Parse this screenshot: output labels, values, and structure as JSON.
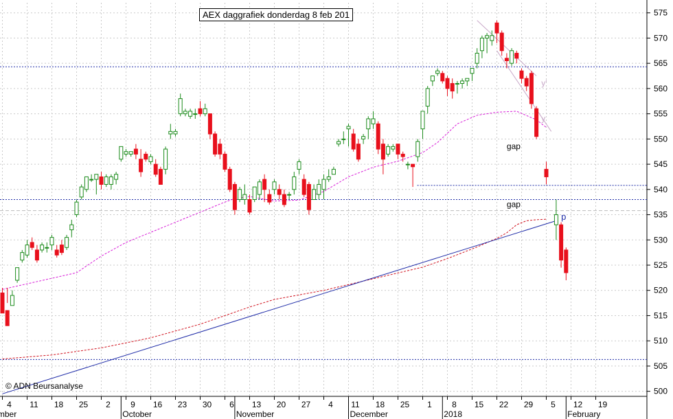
{
  "title": "AEX daggrafiek donderdag 8 feb 201",
  "copyright": "© ADN Beursanalyse",
  "colors": {
    "up": "#1a8a1a",
    "down": "#e8101c",
    "ma_short": "#d81bd8",
    "ma_long": "#d0101c",
    "trendline": "#1f2ca8",
    "h_level": "#1f2ca8",
    "grid": "#c9c9c9"
  },
  "chart_data": {
    "type": "candlestick",
    "title": "AEX daggrafiek donderdag 8 feb 201",
    "ylim": [
      499,
      577
    ],
    "y_ticks": [
      500,
      505,
      510,
      515,
      520,
      525,
      530,
      535,
      540,
      545,
      550,
      555,
      560,
      565,
      570,
      575
    ],
    "x_tick_labels": [
      "4",
      "11",
      "18",
      "25",
      "2",
      "9",
      "16",
      "23",
      "30",
      "6",
      "13",
      "20",
      "27",
      "4",
      "11",
      "18",
      "25",
      "1",
      "8",
      "15",
      "22",
      "29",
      "5",
      "12",
      "19"
    ],
    "month_labels": [
      "September",
      "October",
      "November",
      "December",
      "2018",
      "February"
    ],
    "grid": true,
    "candles": [
      [
        519.5,
        515.5,
        520.5,
        518
      ],
      [
        516,
        513,
        520.5,
        517.5
      ],
      [
        517,
        519,
        520,
        518.5
      ],
      [
        522,
        524.5,
        524.5,
        521.5
      ],
      [
        526,
        527.5,
        528,
        525.5
      ],
      [
        527,
        529,
        530,
        526.5
      ],
      [
        529.5,
        528.5,
        530.5,
        528
      ],
      [
        528,
        526,
        529,
        525.5
      ],
      [
        528,
        529,
        529.5,
        527.5
      ],
      [
        528.5,
        528.5,
        529.5,
        527.5
      ],
      [
        529,
        530.5,
        531,
        528
      ],
      [
        528,
        527,
        529,
        526.5
      ],
      [
        529,
        527.5,
        530,
        527
      ],
      [
        528.5,
        530.5,
        531,
        528
      ],
      [
        532,
        533,
        534,
        530.5
      ],
      [
        535,
        537.5,
        538,
        534.5
      ],
      [
        538.5,
        540.5,
        541,
        538
      ],
      [
        540,
        542.5,
        542.5,
        539.5
      ],
      [
        542,
        542,
        543,
        541.5
      ],
      [
        542,
        543,
        543,
        539
      ],
      [
        542.5,
        541,
        543.5,
        540
      ],
      [
        541,
        542.5,
        543,
        540.5
      ],
      [
        541,
        542.5,
        543,
        540
      ],
      [
        542,
        543,
        543.5,
        541
      ],
      [
        546,
        548.5,
        548.5,
        545.5
      ],
      [
        547,
        547.5,
        548,
        546.5
      ],
      [
        547,
        547.5,
        547.5,
        546.5
      ],
      [
        548,
        547,
        549,
        546
      ],
      [
        546,
        543.5,
        548,
        542.5
      ],
      [
        547,
        546,
        547.5,
        545.5
      ],
      [
        545.5,
        546.5,
        547,
        545
      ],
      [
        545,
        543,
        546,
        542.5
      ],
      [
        544,
        541,
        544.5,
        541
      ],
      [
        544,
        548,
        548.5,
        543
      ],
      [
        551,
        551.5,
        553,
        550
      ],
      [
        551,
        551.5,
        552,
        550.5
      ],
      [
        555,
        558,
        559,
        554.5
      ],
      [
        555,
        555.5,
        556,
        554.5
      ],
      [
        554.5,
        555.5,
        556,
        554
      ],
      [
        555,
        555,
        556,
        554
      ],
      [
        556,
        555,
        557.5,
        554.5
      ],
      [
        555,
        556,
        557,
        554.5
      ],
      [
        555,
        551,
        555,
        550
      ],
      [
        551,
        547,
        551.5,
        546.5
      ],
      [
        549,
        547,
        550,
        546
      ],
      [
        547,
        544,
        547.5,
        543.5
      ],
      [
        544,
        540,
        544.5,
        539.5
      ],
      [
        541,
        536,
        541.5,
        535
      ],
      [
        538,
        540,
        540.5,
        537.5
      ],
      [
        538,
        539,
        541,
        537
      ],
      [
        538,
        535.5,
        539,
        535
      ],
      [
        538,
        540.5,
        540.5,
        537.5
      ],
      [
        539,
        541.5,
        542,
        538
      ],
      [
        542,
        540,
        543,
        537.5
      ],
      [
        539,
        537.5,
        540,
        537
      ],
      [
        540,
        541.5,
        542,
        539
      ],
      [
        540,
        539,
        541,
        538
      ],
      [
        539,
        537,
        540,
        536.5
      ],
      [
        539,
        539,
        539.5,
        538
      ],
      [
        540,
        542.5,
        543.5,
        539
      ],
      [
        544,
        545.5,
        546,
        543
      ],
      [
        542,
        539,
        543,
        538.5
      ],
      [
        541,
        536,
        541.5,
        535
      ],
      [
        538,
        540,
        541,
        538
      ],
      [
        539,
        541,
        542,
        538
      ],
      [
        540,
        542,
        543,
        538
      ],
      [
        542,
        542.5,
        544,
        541.5
      ],
      [
        543,
        544,
        544.5,
        543
      ],
      [
        549,
        549.5,
        550,
        548.5
      ],
      [
        550,
        550,
        551.5,
        549
      ],
      [
        552,
        552.5,
        553,
        548.5
      ],
      [
        551,
        548,
        552,
        547.5
      ],
      [
        549,
        546,
        550,
        545.5
      ],
      [
        550,
        550.5,
        551,
        549
      ],
      [
        552,
        554,
        554.5,
        550
      ],
      [
        553,
        554,
        555.5,
        552
      ],
      [
        553,
        548,
        553.5,
        547
      ],
      [
        549,
        546,
        550,
        543
      ],
      [
        547,
        548.5,
        549,
        546.5
      ],
      [
        548,
        548.5,
        549,
        547.5
      ],
      [
        549,
        547,
        549,
        546
      ],
      [
        547,
        546.5,
        547.5,
        545.5
      ],
      [
        545,
        545,
        545.5,
        544
      ],
      [
        545,
        544.5,
        545,
        540.5
      ],
      [
        546.5,
        549.5,
        550,
        545.5
      ],
      [
        552,
        555.5,
        555.5,
        550
      ],
      [
        556.5,
        560,
        560.5,
        555
      ],
      [
        561.5,
        562.5,
        562.5,
        560.5
      ],
      [
        563,
        563.5,
        564,
        562.5
      ],
      [
        563,
        561.5,
        563.5,
        561
      ],
      [
        562,
        560,
        562.5,
        558.5
      ],
      [
        561,
        559.5,
        562,
        558
      ],
      [
        561,
        561,
        561.5,
        559
      ],
      [
        561,
        561.5,
        562,
        560
      ],
      [
        561.5,
        562,
        562,
        560.5
      ],
      [
        563,
        564,
        564,
        561.5
      ],
      [
        565,
        567,
        568,
        564
      ],
      [
        567.5,
        570,
        570.5,
        566
      ],
      [
        570,
        570.5,
        571,
        567
      ],
      [
        569.5,
        570.5,
        571.5,
        568.5
      ],
      [
        573,
        571,
        573.5,
        569
      ],
      [
        571,
        567.5,
        571.5,
        566.5
      ],
      [
        566,
        565.5,
        567,
        564
      ],
      [
        565,
        567.5,
        568,
        564.5
      ],
      [
        567,
        566,
        567.5,
        565
      ],
      [
        563.5,
        562,
        564,
        561
      ],
      [
        562,
        560.5,
        562.5,
        559.5
      ],
      [
        563,
        557,
        563.5,
        556
      ],
      [
        556,
        550.5,
        556.5,
        550
      ],
      null,
      [
        544,
        542.5,
        545.5,
        541
      ],
      null,
      [
        533,
        535,
        538,
        530
      ],
      [
        533,
        526,
        533.5,
        524.5
      ],
      [
        528,
        523.5,
        528.5,
        522
      ]
    ],
    "candle_order": "daily trading sessions Aug 30 2017 – Feb 8 2018, each [open, close, high, low]",
    "ma_short_values": [
      [
        0,
        520.2
      ],
      [
        15,
        523.5
      ],
      [
        20,
        526.8
      ],
      [
        25,
        529.5
      ],
      [
        35,
        533.5
      ],
      [
        45,
        537.5
      ],
      [
        47,
        538.2
      ],
      [
        50,
        538.6
      ],
      [
        55,
        537.7
      ],
      [
        60,
        537.9
      ],
      [
        65,
        539.6
      ],
      [
        70,
        542.5
      ],
      [
        75,
        544.4
      ],
      [
        80,
        545.6
      ],
      [
        85,
        547.3
      ],
      [
        88,
        549.3
      ],
      [
        92,
        553.0
      ],
      [
        96,
        554.7
      ],
      [
        100,
        555.3
      ],
      [
        104,
        555.5
      ],
      [
        108,
        553.8
      ],
      [
        110,
        552.3
      ]
    ],
    "ma_long_values": [
      [
        0,
        506.4
      ],
      [
        10,
        507.2
      ],
      [
        20,
        508.6
      ],
      [
        30,
        510.6
      ],
      [
        40,
        513.3
      ],
      [
        50,
        516.7
      ],
      [
        55,
        518.2
      ],
      [
        65,
        520.0
      ],
      [
        75,
        522.3
      ],
      [
        85,
        524.6
      ],
      [
        90,
        526.3
      ],
      [
        96,
        528.6
      ],
      [
        100,
        530.3
      ],
      [
        102,
        531.4
      ],
      [
        104,
        533.0
      ],
      [
        106,
        533.8
      ],
      [
        108,
        534.0
      ],
      [
        110,
        534.1
      ]
    ],
    "trendline": {
      "label": "p",
      "from": [
        0,
        499.5
      ],
      "to": [
        112,
        533.8
      ]
    },
    "resistance_trend": [
      [
        96,
        573.5
      ],
      [
        108,
        562.5
      ]
    ],
    "resistance_label": "y'",
    "support_trend": [
      [
        100,
        567.5
      ],
      [
        111,
        551.5
      ]
    ],
    "support_label": "y",
    "h_lines": [
      {
        "y": 564.3,
        "color": "#1f2ca8",
        "style": "dotted",
        "from": 0,
        "to": 1
      },
      {
        "y": 540.8,
        "color": "#1f2ca8",
        "style": "dotted",
        "from": 0.645,
        "to": 1
      },
      {
        "y": 538.0,
        "color": "#1f2ca8",
        "style": "dotted",
        "from": 0,
        "to": 1
      },
      {
        "y": 535.8,
        "color": "#bbbbbb",
        "style": "dashed",
        "from": 0,
        "to": 1
      },
      {
        "y": 506.3,
        "color": "#1f2ca8",
        "style": "dotted",
        "from": 0,
        "to": 1
      }
    ],
    "annotations": [
      {
        "text": "gap",
        "x": 102,
        "y": 548
      },
      {
        "text": "gap",
        "x": 102,
        "y": 536.5
      },
      {
        "text": "p",
        "x": 113,
        "y": 534
      },
      {
        "text": "y'",
        "x": 109,
        "y": 560.5
      },
      {
        "text": "y",
        "x": 109,
        "y": 553.5
      }
    ]
  }
}
